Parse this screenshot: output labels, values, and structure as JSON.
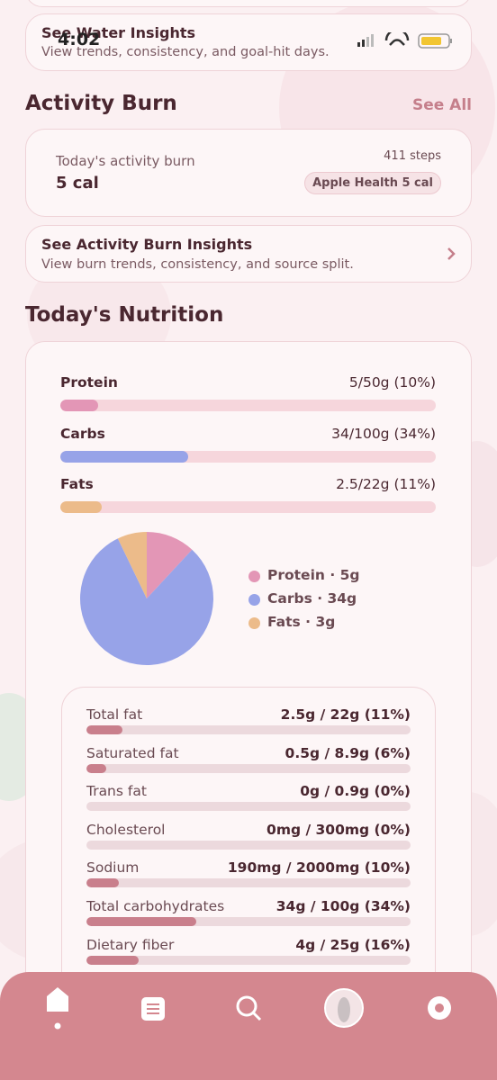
{
  "status_bar": {
    "time": "4:02"
  },
  "water_card": {
    "title": "See Water Insights",
    "subtitle": "View trends, consistency, and goal-hit days."
  },
  "activity": {
    "heading": "Activity Burn",
    "see_all": "See All",
    "card": {
      "label": "Today's activity burn",
      "value": "5 cal",
      "steps": "411 steps",
      "source": "Apple Health 5 cal"
    },
    "insights": {
      "title": "See Activity Burn Insights",
      "subtitle": "View burn trends, consistency, and source split."
    }
  },
  "nutrition": {
    "heading": "Today's Nutrition",
    "macros": [
      {
        "name": "Protein",
        "amount": "5/50g (10%)",
        "percent": 10,
        "color": "#e396b6"
      },
      {
        "name": "Carbs",
        "amount": "34/100g (34%)",
        "percent": 34,
        "color": "#97a3e8"
      },
      {
        "name": "Fats",
        "amount": "2.5/22g (11%)",
        "percent": 11,
        "color": "#ecbb8a"
      }
    ],
    "pie": [
      {
        "label": "Protein · 5g",
        "value": 5,
        "color": "#e396b6"
      },
      {
        "label": "Carbs · 34g",
        "value": 34,
        "color": "#97a3e8"
      },
      {
        "label": "Fats · 3g",
        "value": 3,
        "color": "#ecbb8a"
      }
    ],
    "nutrients": [
      {
        "name": "Total fat",
        "amount": "2.5g / 22g (11%)",
        "percent": 11
      },
      {
        "name": "Saturated fat",
        "amount": "0.5g / 8.9g (6%)",
        "percent": 6
      },
      {
        "name": "Trans fat",
        "amount": "0g / 0.9g (0%)",
        "percent": 0
      },
      {
        "name": "Cholesterol",
        "amount": "0mg / 300mg (0%)",
        "percent": 0
      },
      {
        "name": "Sodium",
        "amount": "190mg / 2000mg (10%)",
        "percent": 10
      },
      {
        "name": "Total carbohydrates",
        "amount": "34g / 100g (34%)",
        "percent": 34
      },
      {
        "name": "Dietary fiber",
        "amount": "4g / 25g (16%)",
        "percent": 16
      }
    ]
  }
}
